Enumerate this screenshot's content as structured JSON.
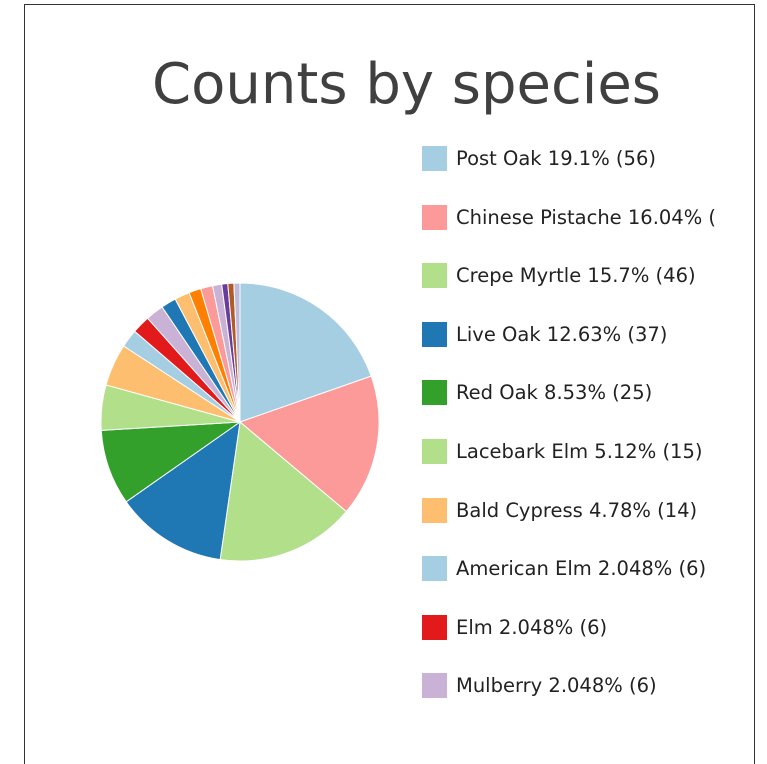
{
  "chart_data": {
    "type": "pie",
    "title": "Counts by species",
    "slices": [
      {
        "label": "Post Oak 19.1% (56)",
        "name": "Post Oak",
        "value": 56,
        "color": "#a6cee3"
      },
      {
        "label": "Chinese Pistache 16.04% (",
        "name": "Chinese Pistache",
        "value": 47,
        "color": "#fb9a99"
      },
      {
        "label": "Crepe Myrtle 15.7% (46)",
        "name": "Crepe Myrtle",
        "value": 46,
        "color": "#b2df8a"
      },
      {
        "label": "Live Oak 12.63% (37)",
        "name": "Live Oak",
        "value": 37,
        "color": "#1f78b4"
      },
      {
        "label": "Red Oak 8.53% (25)",
        "name": "Red Oak",
        "value": 25,
        "color": "#33a02c"
      },
      {
        "label": "Lacebark Elm 5.12% (15)",
        "name": "Lacebark Elm",
        "value": 15,
        "color": "#b2df8a"
      },
      {
        "label": "Bald Cypress 4.78% (14)",
        "name": "Bald Cypress",
        "value": 14,
        "color": "#fdbf6f"
      },
      {
        "label": "American Elm 2.048% (6)",
        "name": "American Elm",
        "value": 6,
        "color": "#a6cee3"
      },
      {
        "label": "Elm 2.048% (6)",
        "name": "Elm",
        "value": 6,
        "color": "#e31a1c"
      },
      {
        "label": "Mulberry 2.048% (6)",
        "name": "Mulberry",
        "value": 6,
        "color": "#cab2d6"
      },
      {
        "label": "",
        "value": 5,
        "color": "#1f78b4"
      },
      {
        "label": "",
        "value": 5,
        "color": "#fdbf6f"
      },
      {
        "label": "",
        "value": 4,
        "color": "#ff7f00"
      },
      {
        "label": "",
        "value": 4,
        "color": "#fb9a99"
      },
      {
        "label": "",
        "value": 3,
        "color": "#cab2d6"
      },
      {
        "label": "",
        "value": 2,
        "color": "#6a3d9a"
      },
      {
        "label": "",
        "value": 2,
        "color": "#b15928"
      },
      {
        "label": "",
        "value": 2,
        "color": "#bebada"
      }
    ],
    "legend_position": "right"
  }
}
